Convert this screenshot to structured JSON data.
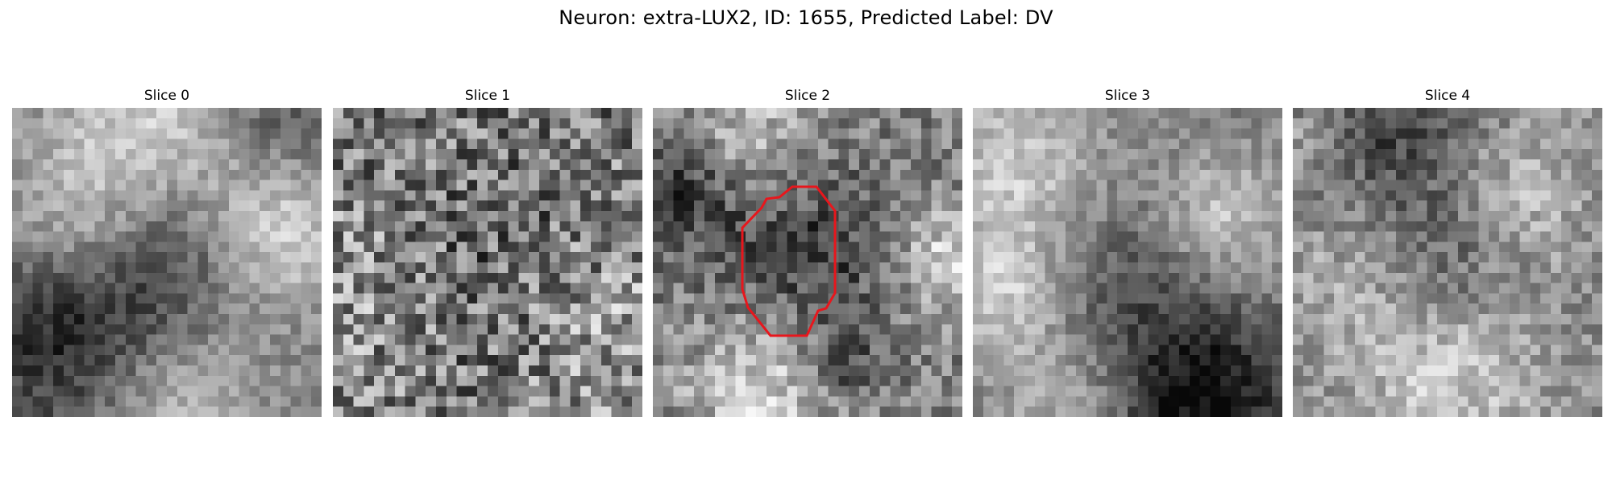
{
  "figure": {
    "title": "Neuron: extra-LUX2, ID: 1655, Predicted Label: DV"
  },
  "colormap": "gray",
  "contour_color": "#e8161c",
  "panels": [
    {
      "title": "Slice 0",
      "has_contour": false
    },
    {
      "title": "Slice 1",
      "has_contour": false
    },
    {
      "title": "Slice 2",
      "has_contour": true
    },
    {
      "title": "Slice 3",
      "has_contour": false
    },
    {
      "title": "Slice 4",
      "has_contour": false
    }
  ]
}
